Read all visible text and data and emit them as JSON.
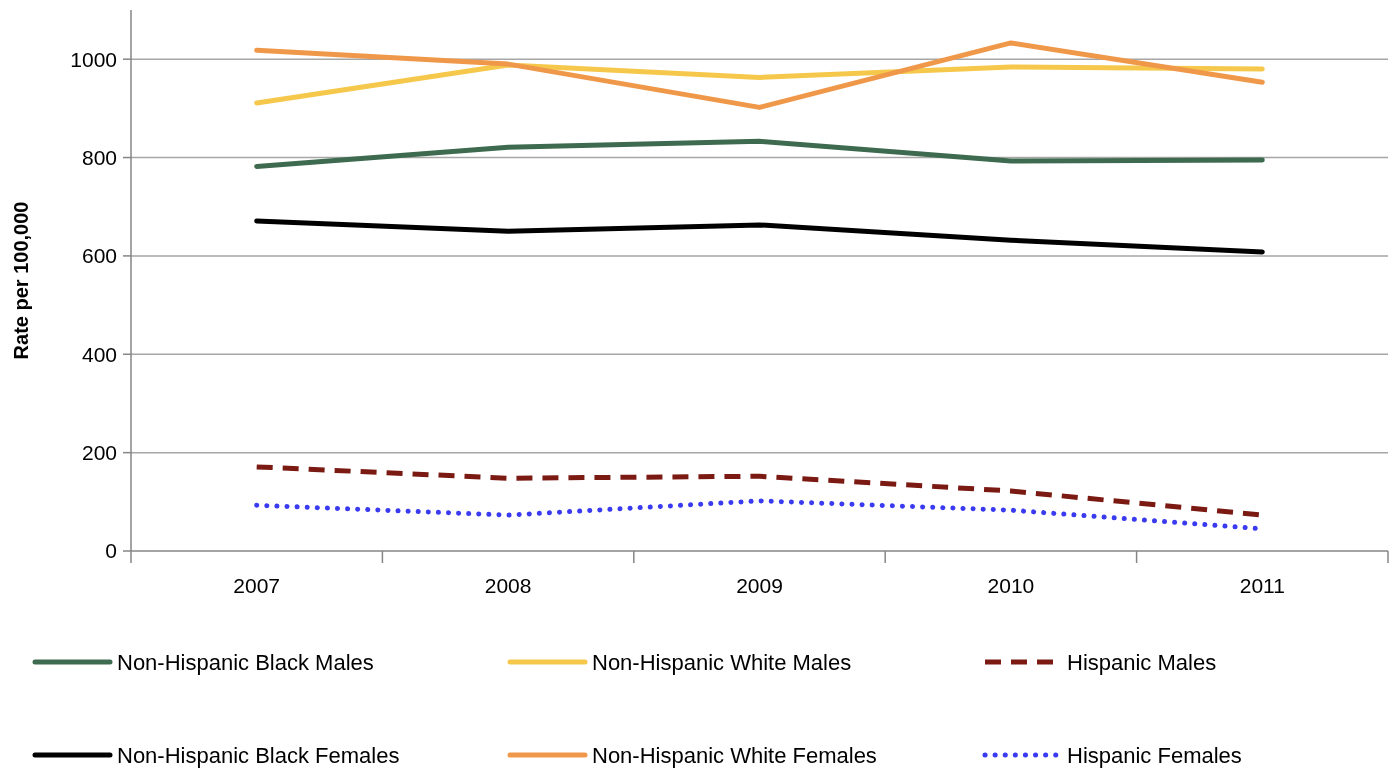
{
  "chart_data": {
    "type": "line",
    "ylabel": "Rate per 100,000",
    "categories": [
      "2007",
      "2008",
      "2009",
      "2010",
      "2011"
    ],
    "ylim": [
      0,
      1100
    ],
    "yticks": [
      0,
      200,
      400,
      600,
      800,
      1000
    ],
    "grid": "y",
    "legend": "bottom",
    "series": [
      {
        "name": "Non-Hispanic Black Males",
        "color": "#3e6b4f",
        "values": [
          782,
          821,
          833,
          793,
          795
        ]
      },
      {
        "name": "Non-Hispanic White Males",
        "color": "#f5c84c",
        "values": [
          911,
          988,
          963,
          984,
          980
        ]
      },
      {
        "name": "Hispanic Males",
        "color": "#7b1a12",
        "line_style": "dashed",
        "values": [
          171,
          148,
          152,
          122,
          73
        ]
      },
      {
        "name": "Non-Hispanic Black Females",
        "color": "#000000",
        "values": [
          671,
          650,
          663,
          632,
          608
        ]
      },
      {
        "name": "Non-Hispanic White Females",
        "color": "#f0984a",
        "values": [
          1018,
          990,
          902,
          1033,
          953
        ]
      },
      {
        "name": "Hispanic Females",
        "color": "#3a3af0",
        "line_style": "dotted",
        "values": [
          93,
          73,
          102,
          83,
          45
        ]
      }
    ]
  }
}
